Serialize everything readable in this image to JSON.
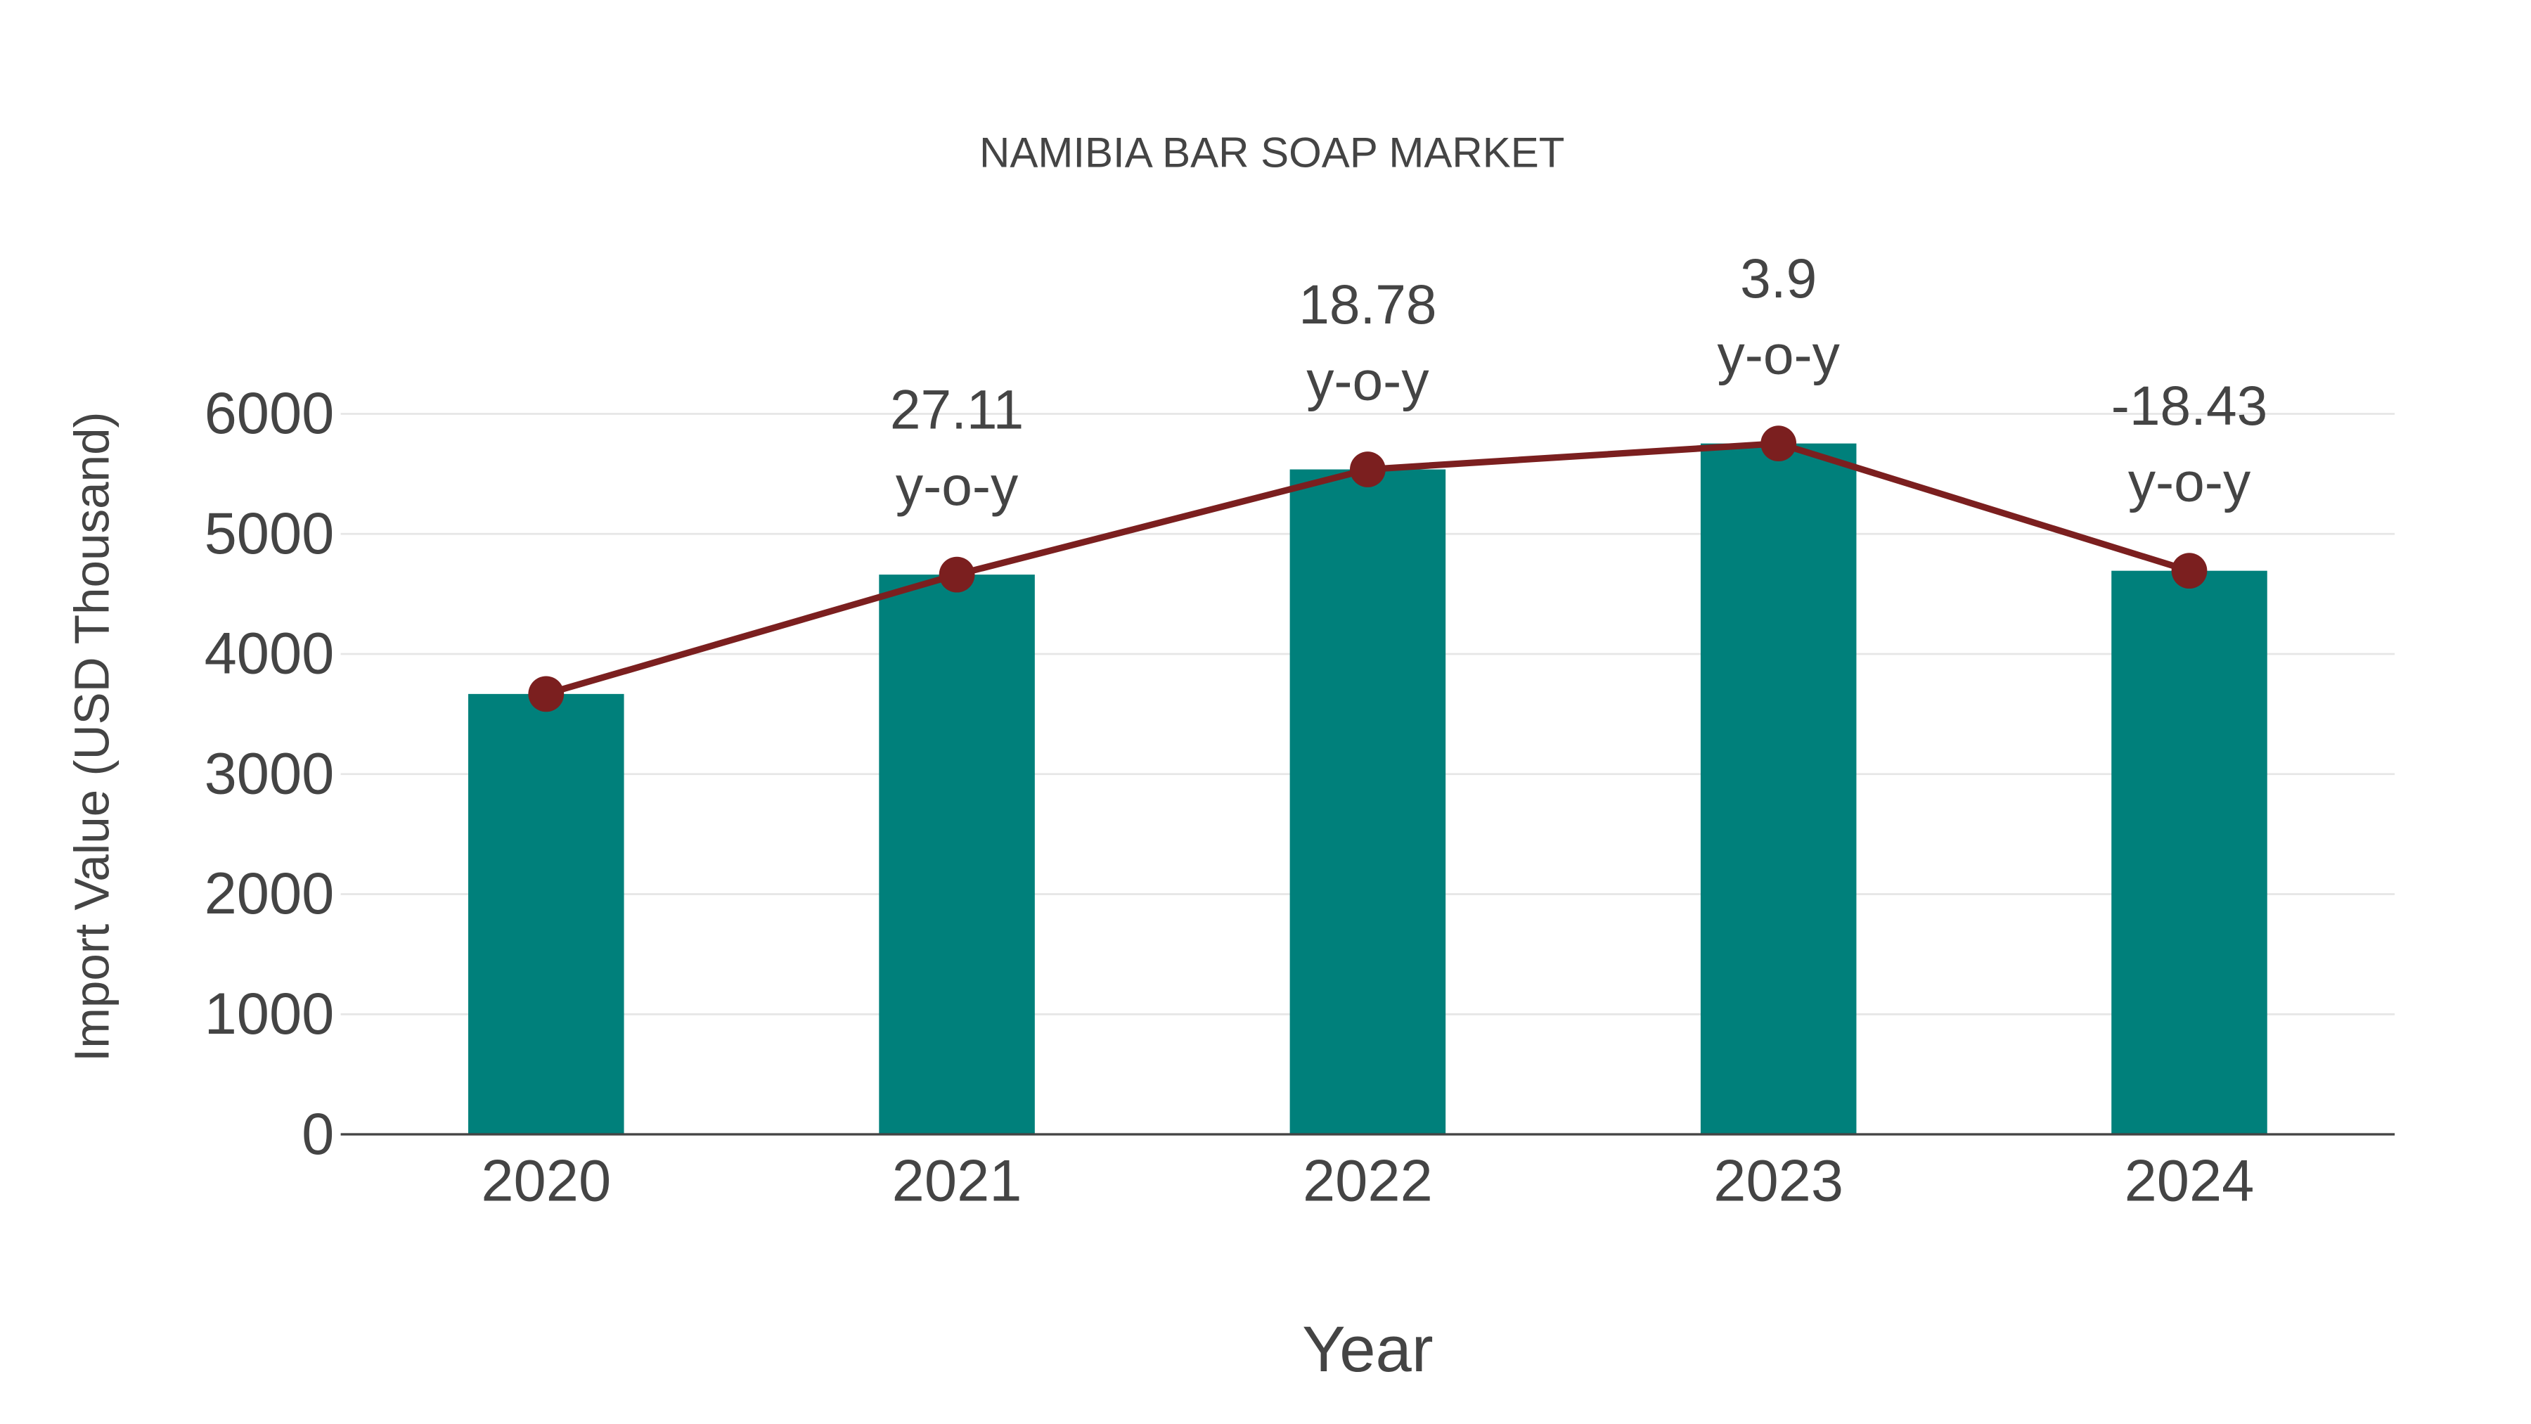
{
  "chart_data": {
    "type": "bar",
    "title": "NAMIBIA BAR SOAP MARKET",
    "xlabel": "Year",
    "ylabel": "Import Value (USD Thousand)",
    "categories": [
      "2020",
      "2021",
      "2022",
      "2023",
      "2024"
    ],
    "series": [
      {
        "name": "Import Value",
        "type": "bar",
        "values": [
          3667,
          4661,
          5537,
          5753,
          4693
        ],
        "color": "#00807b"
      },
      {
        "name": "Trend",
        "type": "line",
        "values": [
          3667,
          4661,
          5537,
          5753,
          4693
        ],
        "color": "#7b1f1f"
      }
    ],
    "annotations": [
      {
        "category": "2021",
        "value": "27.11",
        "suffix": "y-o-y"
      },
      {
        "category": "2022",
        "value": "18.78",
        "suffix": "y-o-y"
      },
      {
        "category": "2023",
        "value": "3.9",
        "suffix": "y-o-y"
      },
      {
        "category": "2024",
        "value": "-18.43",
        "suffix": "y-o-y"
      }
    ],
    "ylim": [
      0,
      6000
    ],
    "yticks": [
      0,
      1000,
      2000,
      3000,
      4000,
      5000,
      6000
    ],
    "grid": true
  }
}
